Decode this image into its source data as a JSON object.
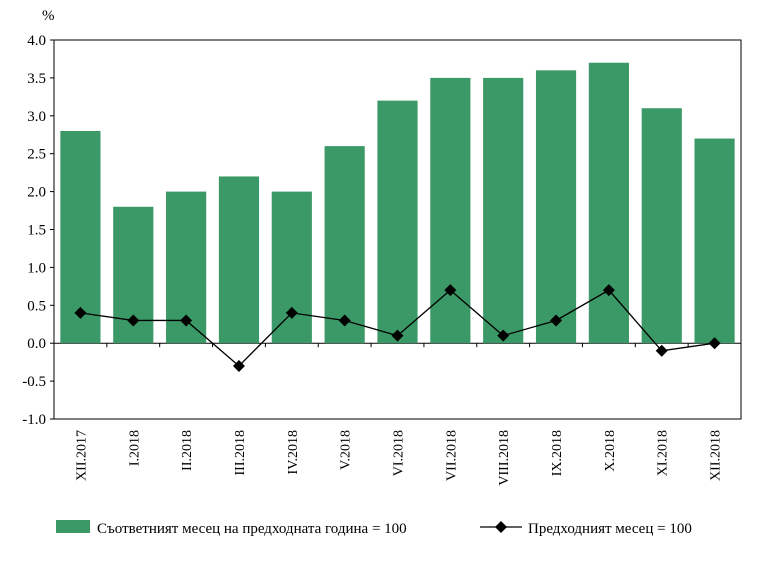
{
  "chart_data": {
    "type": "bar",
    "unit_label": "%",
    "categories": [
      "XII.2017",
      "I.2018",
      "II.2018",
      "III.2018",
      "IV.2018",
      "V.2018",
      "VI.2018",
      "VII.2018",
      "VIII.2018",
      "IX.2018",
      "X.2018",
      "XI.2018",
      "XII.2018"
    ],
    "series": [
      {
        "name": "Съответният месец на предходната година = 100",
        "type": "bar",
        "color": "#3a9966",
        "values": [
          2.8,
          1.8,
          2.0,
          2.2,
          2.0,
          2.6,
          3.2,
          3.5,
          3.5,
          3.6,
          3.7,
          3.1,
          2.7
        ]
      },
      {
        "name": "Предходният месец = 100",
        "type": "line",
        "marker": "diamond",
        "color": "#000000",
        "values": [
          0.4,
          0.3,
          0.3,
          -0.3,
          0.4,
          0.3,
          0.1,
          0.7,
          0.1,
          0.3,
          0.7,
          -0.1,
          0.0
        ]
      }
    ],
    "ylim": [
      -1.0,
      4.0
    ],
    "yticks": [
      "-1.0",
      "-0.5",
      "0.0",
      "0.5",
      "1.0",
      "1.5",
      "2.0",
      "2.5",
      "3.0",
      "3.5",
      "4.0"
    ],
    "grid": false,
    "legend_position": "bottom"
  }
}
